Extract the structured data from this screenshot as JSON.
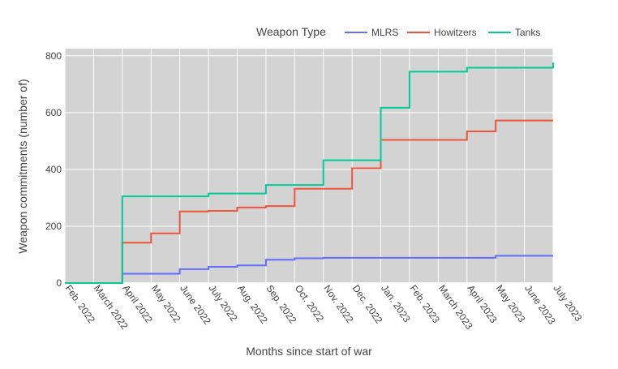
{
  "chart_data": {
    "type": "line",
    "line_shape": "step",
    "x_axis": {
      "label": "Months since start of war",
      "categories": [
        "Feb. 2022",
        "March 2022",
        "April 2022",
        "May 2022",
        "June 2022",
        "July 2022",
        "Aug. 2022",
        "Sep. 2022",
        "Oct. 2022",
        "Nov. 2022",
        "Dec. 2022",
        "Jan. 2023",
        "Feb. 2023",
        "March 2023",
        "April 2023",
        "May 2023",
        "June 2023",
        "July 2023"
      ]
    },
    "y_axis": {
      "label": "Weapon commitments (number of)",
      "range": [
        0,
        825
      ],
      "ticks": [
        0,
        200,
        400,
        600,
        800
      ]
    },
    "legend": {
      "title": "Weapon Type",
      "placement": "top-right",
      "orientation": "horizontal"
    },
    "grid": true,
    "plot_background": "#d3d3d3",
    "series": [
      {
        "name": "MLRS",
        "color": "#636efa",
        "values": [
          0,
          0,
          33,
          33,
          49,
          57,
          62,
          82,
          87,
          89,
          89,
          89,
          89,
          89,
          89,
          96,
          96,
          96
        ]
      },
      {
        "name": "Howitzers",
        "color": "#ef553b",
        "values": [
          0,
          0,
          142,
          175,
          252,
          254,
          266,
          271,
          332,
          332,
          404,
          504,
          504,
          504,
          534,
          572,
          572,
          572
        ]
      },
      {
        "name": "Tanks",
        "color": "#00cc96",
        "values": [
          0,
          0,
          305,
          305,
          305,
          315,
          315,
          345,
          345,
          432,
          432,
          617,
          744,
          744,
          758,
          758,
          758,
          776
        ]
      }
    ]
  }
}
